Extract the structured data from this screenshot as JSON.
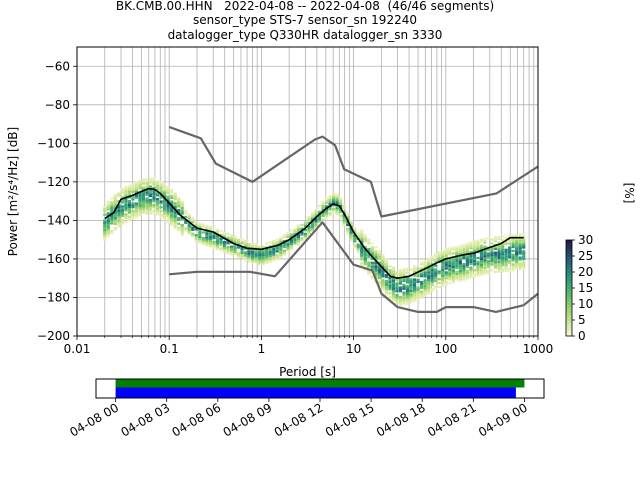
{
  "title_lines": [
    "BK.CMB.00.HHN   2022-04-08 -- 2022-04-08  (46/46 segments)",
    "sensor_type STS-7 sensor_sn 192240",
    "datalogger_type Q330HR datalogger_sn 3330"
  ],
  "chart_data": [
    {
      "type": "heatmap",
      "xlabel": "Period [s]",
      "ylabel": "Power [m²/s⁴/Hz] [dB]",
      "xscale": "log",
      "xlim": [
        0.01,
        1000
      ],
      "ylim": [
        -200,
        -50
      ],
      "x_ticks": [
        0.01,
        0.1,
        1,
        10,
        100,
        1000
      ],
      "x_tick_labels": [
        "0.01",
        "0.1",
        "1",
        "10",
        "100",
        "1000"
      ],
      "y_ticks": [
        -200,
        -180,
        -160,
        -140,
        -120,
        -100,
        -80,
        -60
      ],
      "y_tick_labels": [
        "−200",
        "−180",
        "−160",
        "−140",
        "−120",
        "−100",
        "−80",
        "−60"
      ],
      "grid": true,
      "colorbar": {
        "label": "[%]",
        "range": [
          0,
          30
        ],
        "ticks": [
          0,
          5,
          10,
          15,
          20,
          25,
          30
        ],
        "tick_labels": [
          "0",
          "5",
          "10",
          "15",
          "20",
          "25",
          "30"
        ]
      },
      "series": [
        {
          "role": "noise-model-upper",
          "color": "#666666",
          "x": [
            0.1,
            0.22,
            0.32,
            0.8,
            3.8,
            4.6,
            6.3,
            7.9,
            15.4,
            20,
            354.8,
            1000
          ],
          "y": [
            -91.5,
            -97.4,
            -110.5,
            -120,
            -98,
            -96.5,
            -101,
            -113.5,
            -120,
            -138,
            -126,
            -112
          ]
        },
        {
          "role": "noise-model-lower",
          "color": "#666666",
          "x": [
            0.1,
            0.2,
            0.75,
            1.4,
            4.6,
            10,
            16,
            20,
            30,
            50,
            80,
            100,
            200,
            350,
            700,
            1000
          ],
          "y": [
            -168,
            -166.7,
            -166.7,
            -169,
            -141,
            -163,
            -166,
            -178,
            -185,
            -187.5,
            -187.5,
            -185,
            -185,
            -187.5,
            -184,
            -178
          ]
        },
        {
          "role": "median",
          "color": "#000000",
          "x": [
            0.02,
            0.025,
            0.03,
            0.04,
            0.05,
            0.06,
            0.07,
            0.08,
            0.1,
            0.13,
            0.2,
            0.3,
            0.5,
            0.7,
            1.0,
            1.5,
            2.0,
            3.0,
            4.0,
            5.0,
            6.0,
            7.0,
            8.0,
            10,
            13,
            16,
            20,
            25,
            30,
            40,
            60,
            80,
            100,
            150,
            200,
            300,
            400,
            500,
            700
          ],
          "y": [
            -139,
            -136,
            -129,
            -127,
            -125,
            -123.5,
            -124,
            -126,
            -131,
            -137,
            -144,
            -146,
            -152,
            -154.5,
            -155,
            -153,
            -150,
            -144,
            -138,
            -134,
            -131.5,
            -132.5,
            -137,
            -146,
            -154,
            -159,
            -164,
            -169,
            -170,
            -169,
            -165,
            -162,
            -160,
            -158,
            -157,
            -154,
            -152,
            -149,
            -149
          ]
        },
        {
          "role": "psd-density-centre",
          "x": [
            0.02,
            0.03,
            0.05,
            0.07,
            0.1,
            0.15,
            0.2,
            0.3,
            0.5,
            0.8,
            1.0,
            1.5,
            2.0,
            3.0,
            4.0,
            5.0,
            6.0,
            7.0,
            8.0,
            10,
            13,
            16,
            20,
            25,
            30,
            40,
            60,
            80,
            100,
            150,
            200,
            300,
            500,
            700
          ],
          "y": [
            -141,
            -133,
            -128,
            -127,
            -132,
            -140,
            -146,
            -149,
            -153,
            -157,
            -158,
            -155,
            -151,
            -145,
            -139,
            -134,
            -131,
            -132,
            -138,
            -148,
            -156,
            -161,
            -166,
            -172,
            -175,
            -174,
            -170,
            -166,
            -164,
            -162,
            -160,
            -158,
            -157,
            -156
          ]
        }
      ]
    },
    {
      "type": "timeline",
      "x_tick_labels": [
        "04-08 00",
        "04-08 03",
        "04-08 06",
        "04-08 09",
        "04-08 12",
        "04-08 15",
        "04-08 18",
        "04-08 21",
        "04-09 00"
      ],
      "x_tick_hours": [
        0,
        3,
        6,
        9,
        12,
        15,
        18,
        21,
        24
      ],
      "xlim_hours": [
        -1.15,
        25.15
      ],
      "bars": [
        {
          "role": "data-available",
          "color": "#008000",
          "start_hour": 0,
          "end_hour": 24.0
        },
        {
          "role": "segments-used",
          "color": "#0000ff",
          "start_hour": 0,
          "end_hour": 23.5
        }
      ]
    }
  ]
}
